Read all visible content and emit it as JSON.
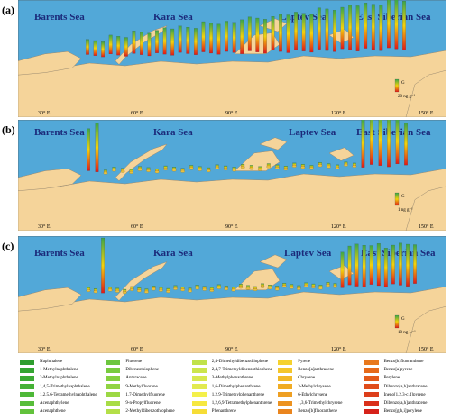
{
  "colors": {
    "ocean": "#52a8d8",
    "land": "#f5d49a",
    "coast": "#9a8a70",
    "bar_top": "#3aa64a",
    "bar_mid": "#f2d20c",
    "bar_bottom": "#e01818"
  },
  "panels": [
    {
      "label": "(a)",
      "seas": [
        "Barents Sea",
        "Kara Sea",
        "Laptev Sea",
        "East Siberian Sea"
      ],
      "scale_label": "20 ng g⁻¹",
      "scale_g": "G",
      "longitudes": [
        "30° E",
        "60° E",
        "90° E",
        "120° E",
        "150° E"
      ],
      "bar_values": [
        4,
        4,
        4,
        5,
        5,
        5,
        6,
        6,
        6,
        6,
        7,
        7,
        7,
        7,
        7,
        8,
        8,
        8,
        8,
        8,
        9,
        9,
        9,
        9,
        9,
        10,
        10,
        10,
        10,
        10,
        11,
        11,
        11,
        11,
        12,
        12,
        12,
        12,
        12,
        13,
        13,
        13
      ]
    },
    {
      "label": "(b)",
      "seas": [
        "Barents Sea",
        "Kara Sea",
        "Laptev Sea",
        "East Siberian Sea"
      ],
      "scale_label": "1 ng g⁻¹",
      "scale_g": "G",
      "longitudes": [
        "30° E",
        "60° E",
        "90° E",
        "120° E",
        "150° E"
      ],
      "bar_values": [
        13,
        15,
        1,
        1,
        1,
        1,
        1,
        1,
        1,
        1,
        1,
        1,
        1,
        1,
        1,
        1,
        1,
        1,
        1,
        1,
        1,
        1,
        1,
        1,
        1,
        1,
        1,
        1,
        1,
        1,
        1,
        1,
        15,
        16,
        16,
        16,
        14,
        13
      ]
    },
    {
      "label": "(c)",
      "seas": [
        "Barents Sea",
        "Kara Sea",
        "Laptev Sea",
        "East Siberian Sea"
      ],
      "scale_label": "10 ng L⁻¹",
      "scale_g": "G",
      "longitudes": [
        "30° E",
        "60° E",
        "90° E",
        "120° E",
        "150° E"
      ],
      "bar_values": [
        1,
        1,
        17,
        1,
        1,
        1,
        1,
        1,
        1,
        1,
        1,
        1,
        1,
        1,
        1,
        1,
        1,
        1,
        1,
        1,
        1,
        1,
        1,
        1,
        1,
        1,
        1,
        1,
        1,
        1,
        1,
        1,
        1,
        1,
        1,
        11,
        12,
        13,
        13,
        12,
        13,
        12,
        12,
        13,
        13,
        12
      ]
    }
  ],
  "legend": [
    {
      "name": "Naphthalene",
      "color": "#2e9e2e"
    },
    {
      "name": "1-Methylnaphthalene",
      "color": "#35a532"
    },
    {
      "name": "2-Methylnaphthalene",
      "color": "#3cab34"
    },
    {
      "name": "1,4,5-Trimethylnaphthalene",
      "color": "#45b236"
    },
    {
      "name": "1,2,5,6-Tetramethylnaphthalene",
      "color": "#4eb838"
    },
    {
      "name": "Acenaphthylene",
      "color": "#58bd3a"
    },
    {
      "name": "Acenaphthene",
      "color": "#62c23c"
    },
    {
      "name": "Fluorene",
      "color": "#6cc63e"
    },
    {
      "name": "Dibenzothiophene",
      "color": "#78cb3f"
    },
    {
      "name": "Anthracene",
      "color": "#84d040"
    },
    {
      "name": "9-Methylfluorene",
      "color": "#90d442"
    },
    {
      "name": "1,7-Dimethylfluorene",
      "color": "#9cd844"
    },
    {
      "name": "9-n-Propylfluorene",
      "color": "#a8dc46"
    },
    {
      "name": "2-Methyldibenzothiophene",
      "color": "#b4df48"
    },
    {
      "name": "2,4-Dimethyldibenzothiophene",
      "color": "#c0e24a"
    },
    {
      "name": "2,4,7-Trimethyldibenzothiophene",
      "color": "#cce54c"
    },
    {
      "name": "3-Methylphenanthrene",
      "color": "#d8e84e"
    },
    {
      "name": "1,6-Dimethylphenanthrene",
      "color": "#e2ea50"
    },
    {
      "name": "1,2,9-Trimethylphenanthrene",
      "color": "#f4f04a"
    },
    {
      "name": "1,2,6,9-Tetramethylphenanthrene",
      "color": "#f6e840"
    },
    {
      "name": "Phenanthrene",
      "color": "#f6dd36"
    },
    {
      "name": "Pyrene",
      "color": "#f5d22e"
    },
    {
      "name": "Benzo[a]anthracene",
      "color": "#f4c62a"
    },
    {
      "name": "Chrysene",
      "color": "#f2b926"
    },
    {
      "name": "3-Methylchrysene",
      "color": "#f0ac24"
    },
    {
      "name": "6-Ethylchrysene",
      "color": "#ee9f22"
    },
    {
      "name": "1,3,6-Trimethylchrysene",
      "color": "#ec9220"
    },
    {
      "name": "Benzo[b]fluoranthene",
      "color": "#ea851e"
    },
    {
      "name": "Benzo[k]fluoranthene",
      "color": "#e8781c"
    },
    {
      "name": "Benzo[a]pyrene",
      "color": "#e66a1a"
    },
    {
      "name": "Perylene",
      "color": "#e35a1a"
    },
    {
      "name": "Dibenzo[a,h]anthracene",
      "color": "#e04c1a"
    },
    {
      "name": "Ineno[1,2,3-c,d]pyrene",
      "color": "#dd3e1a"
    },
    {
      "name": "Dibenzo[a,h]anthracene",
      "color": "#da301a"
    },
    {
      "name": "Benzo[g,h,i]perylene",
      "color": "#d6221a"
    }
  ]
}
